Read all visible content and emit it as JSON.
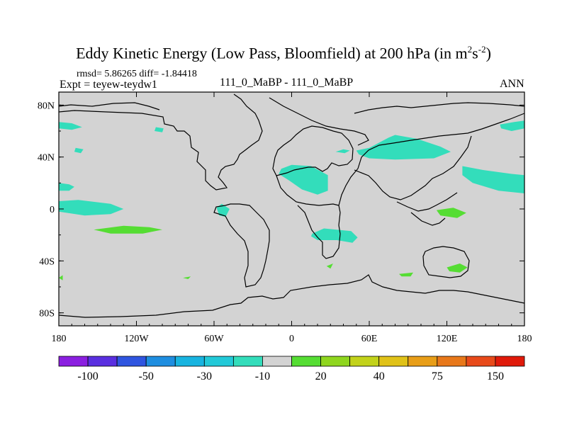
{
  "title_main": "Eddy Kinetic Energy (Low Pass, Bloomfield) at 200 hPa (in m",
  "title_sup1": "2",
  "title_mid": "s",
  "title_sup2": "-2",
  "title_end": ")",
  "stats": "rmsd= 5.86265 diff= -1.84418",
  "expt": "Expt = teyew-teydw1",
  "center_label": "111_0_MaBP - 111_0_MaBP",
  "season": "ANN",
  "colors": {
    "land_bg": "#d3d3d3",
    "neg_small": "#33ddbb",
    "pos_small": "#55dd33"
  },
  "chart_data": {
    "type": "heatmap",
    "title": "Eddy Kinetic Energy (Low Pass, Bloomfield) at 200 hPa (in m2s-2)",
    "x_range": [
      -180,
      180
    ],
    "y_range": [
      -90,
      90
    ],
    "x_ticks": [
      {
        "value": -180,
        "label": "180"
      },
      {
        "value": -120,
        "label": "120W"
      },
      {
        "value": -60,
        "label": "60W"
      },
      {
        "value": 0,
        "label": "0"
      },
      {
        "value": 60,
        "label": "60E"
      },
      {
        "value": 120,
        "label": "120E"
      },
      {
        "value": 180,
        "label": "180"
      }
    ],
    "y_ticks": [
      {
        "value": 80,
        "label": "80N"
      },
      {
        "value": 40,
        "label": "40N"
      },
      {
        "value": 0,
        "label": "0"
      },
      {
        "value": -40,
        "label": "40S"
      },
      {
        "value": -80,
        "label": "80S"
      }
    ],
    "colorbar": {
      "colors": [
        "#8b1fe0",
        "#5a2fe0",
        "#2f55e0",
        "#1e8ee0",
        "#18b4e0",
        "#22c9d8",
        "#33ddbb",
        "#d3d3d3",
        "#55dd33",
        "#8fd61e",
        "#c2d21a",
        "#e0c218",
        "#e89e18",
        "#e8781a",
        "#e84a1a",
        "#e01a0a"
      ],
      "labels": [
        {
          "boundary": 1,
          "label": "-100"
        },
        {
          "boundary": 3,
          "label": "-50"
        },
        {
          "boundary": 5,
          "label": "-30"
        },
        {
          "boundary": 7,
          "label": "-10"
        },
        {
          "boundary": 9,
          "label": "20"
        },
        {
          "boundary": 11,
          "label": "40"
        },
        {
          "boundary": 13,
          "label": "75"
        },
        {
          "boundary": 15,
          "label": "150"
        }
      ]
    },
    "patches": [
      {
        "level": "neg_small",
        "points": [
          [
            -180,
            -2
          ],
          [
            -160,
            -5
          ],
          [
            -140,
            -4
          ],
          [
            -130,
            0
          ],
          [
            -140,
            4
          ],
          [
            -165,
            7
          ],
          [
            -180,
            6
          ]
        ]
      },
      {
        "level": "neg_small",
        "points": [
          [
            -180,
            20
          ],
          [
            -172,
            19
          ],
          [
            -168,
            17
          ],
          [
            -172,
            14
          ],
          [
            -180,
            14
          ]
        ]
      },
      {
        "level": "neg_small",
        "points": [
          [
            -180,
            67
          ],
          [
            -170,
            66
          ],
          [
            -162,
            63
          ],
          [
            -170,
            61
          ],
          [
            -180,
            62
          ]
        ]
      },
      {
        "level": "neg_small",
        "points": [
          [
            -167,
            47
          ],
          [
            -161,
            46
          ],
          [
            -163,
            43
          ],
          [
            -168,
            44
          ]
        ]
      },
      {
        "level": "neg_small",
        "points": [
          [
            -105,
            63
          ],
          [
            -99,
            62
          ],
          [
            -100,
            59
          ],
          [
            -106,
            60
          ]
        ]
      },
      {
        "level": "neg_small",
        "points": [
          [
            -58,
            1
          ],
          [
            -54,
            4
          ],
          [
            -48,
            0
          ],
          [
            -51,
            -6
          ],
          [
            -56,
            -5
          ]
        ]
      },
      {
        "level": "neg_small",
        "points": [
          [
            -8,
            31
          ],
          [
            0,
            34
          ],
          [
            15,
            33
          ],
          [
            28,
            26
          ],
          [
            28,
            14
          ],
          [
            20,
            11
          ],
          [
            8,
            15
          ],
          [
            -2,
            22
          ],
          [
            -10,
            27
          ]
        ]
      },
      {
        "level": "neg_small",
        "points": [
          [
            16,
            -19
          ],
          [
            25,
            -15
          ],
          [
            46,
            -17
          ],
          [
            51,
            -22
          ],
          [
            47,
            -26
          ],
          [
            35,
            -24
          ],
          [
            20,
            -24
          ],
          [
            15,
            -21
          ]
        ]
      },
      {
        "level": "neg_small",
        "points": [
          [
            50,
            45
          ],
          [
            60,
            47
          ],
          [
            75,
            55
          ],
          [
            80,
            57
          ],
          [
            97,
            54
          ],
          [
            115,
            48
          ],
          [
            123,
            44
          ],
          [
            110,
            39
          ],
          [
            80,
            38
          ],
          [
            60,
            39
          ],
          [
            52,
            42
          ]
        ]
      },
      {
        "level": "neg_small",
        "points": [
          [
            132,
            33
          ],
          [
            148,
            30
          ],
          [
            170,
            27
          ],
          [
            180,
            26
          ],
          [
            180,
            12
          ],
          [
            160,
            14
          ],
          [
            140,
            20
          ],
          [
            132,
            26
          ]
        ]
      },
      {
        "level": "neg_small",
        "points": [
          [
            161,
            65
          ],
          [
            172,
            67
          ],
          [
            180,
            68
          ],
          [
            180,
            62
          ],
          [
            170,
            60
          ],
          [
            162,
            62
          ]
        ]
      },
      {
        "level": "neg_small",
        "points": [
          [
            34,
            44
          ],
          [
            40,
            46
          ],
          [
            45,
            45
          ],
          [
            41,
            43
          ]
        ]
      },
      {
        "level": "pos_small",
        "points": [
          [
            -153,
            -16
          ],
          [
            -130,
            -13
          ],
          [
            -110,
            -14
          ],
          [
            -100,
            -16
          ],
          [
            -115,
            -19
          ],
          [
            -140,
            -19
          ]
        ]
      },
      {
        "level": "pos_small",
        "points": [
          [
            112,
            -1
          ],
          [
            125,
            1
          ],
          [
            135,
            -3
          ],
          [
            128,
            -7
          ],
          [
            115,
            -5
          ]
        ]
      },
      {
        "level": "pos_small",
        "points": [
          [
            -180,
            -53
          ],
          [
            -177,
            -51
          ],
          [
            -177,
            -55
          ]
        ]
      },
      {
        "level": "pos_small",
        "points": [
          [
            27,
            -44
          ],
          [
            32,
            -42
          ],
          [
            30,
            -46
          ]
        ]
      },
      {
        "level": "pos_small",
        "points": [
          [
            83,
            -50
          ],
          [
            94,
            -49
          ],
          [
            92,
            -52
          ],
          [
            85,
            -52
          ]
        ]
      },
      {
        "level": "pos_small",
        "points": [
          [
            120,
            -45
          ],
          [
            130,
            -42
          ],
          [
            136,
            -45
          ],
          [
            130,
            -49
          ],
          [
            122,
            -48
          ]
        ]
      },
      {
        "level": "pos_small",
        "points": [
          [
            -84,
            -53
          ],
          [
            -78,
            -52
          ],
          [
            -80,
            -54
          ]
        ]
      }
    ]
  }
}
